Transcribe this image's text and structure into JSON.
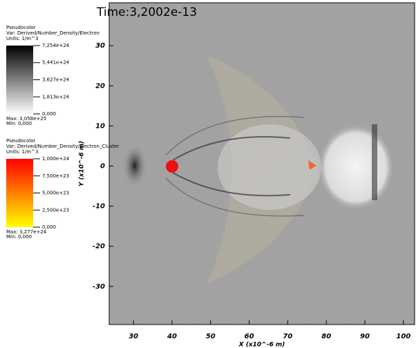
{
  "chart_data": {
    "type": "image",
    "title": "Time:3,2002e-13",
    "x_label": "X (x10^-6 m)",
    "y_label": "Y (x10^-6 m)",
    "xlim": [
      23.7,
      102.9
    ],
    "ylim": [
      -39.5,
      40.7
    ],
    "xticks": [
      30,
      40,
      50,
      60,
      70,
      80,
      90,
      100
    ],
    "yticks": [
      -30,
      -20,
      -10,
      0,
      10,
      20,
      30
    ],
    "legends": [
      {
        "heading": "Pseudocolor",
        "var": "Var: Derived/Number_Density/Electron",
        "units": "Units: 1/m^3",
        "colors": [
          "#ffffff",
          "#000000"
        ],
        "range": [
          0,
          7.254e+24
        ],
        "ticks": [
          {
            "value": 7.254e+24,
            "label": "7,254e+24"
          },
          {
            "value": 5.441e+24,
            "label": "5,441e+24"
          },
          {
            "value": 3.627e+24,
            "label": "3,627e+24"
          },
          {
            "value": 1.813e+24,
            "label": "1,813e+24"
          },
          {
            "value": 0,
            "label": "0,000"
          }
        ],
        "max": "Max: 3,058e+25",
        "min": "Min: 0,000"
      },
      {
        "heading": "Pseudocolor",
        "var": "Var: Derived/Number_Density/Electron_Cluster",
        "units": "Units: 1/m^3",
        "colors": [
          "#ffff00",
          "#ff0000"
        ],
        "range": [
          0,
          1e+24
        ],
        "ticks": [
          {
            "value": 1e+24,
            "label": "1,000e+24"
          },
          {
            "value": 7.5e+23,
            "label": "7,500e+23"
          },
          {
            "value": 5e+23,
            "label": "5,000e+23"
          },
          {
            "value": 2.5e+23,
            "label": "2,500e+23"
          },
          {
            "value": 0,
            "label": "0,000"
          }
        ],
        "max": "Max: 3,277e+24",
        "min": "Min: 0,000"
      }
    ]
  }
}
